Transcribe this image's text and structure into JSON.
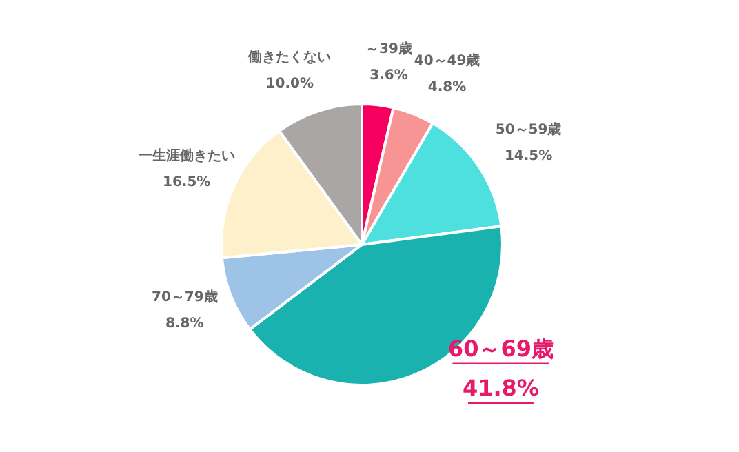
{
  "chart_data": {
    "type": "pie",
    "categories": [
      "～39歳",
      "40～49歳",
      "50～59歳",
      "60～69歳",
      "70～79歳",
      "一生涯働きたい",
      "働きたくない"
    ],
    "values": [
      3.6,
      4.8,
      14.5,
      41.8,
      8.8,
      16.5,
      10.0
    ],
    "value_labels": [
      "3.6%",
      "4.8%",
      "14.5%",
      "41.8%",
      "8.8%",
      "16.5%",
      "10.0%"
    ],
    "colors": [
      "#f5005e",
      "#f79494",
      "#4de0de",
      "#1ab2ae",
      "#9dc3e6",
      "#fff0cc",
      "#aba6a6"
    ]
  }
}
